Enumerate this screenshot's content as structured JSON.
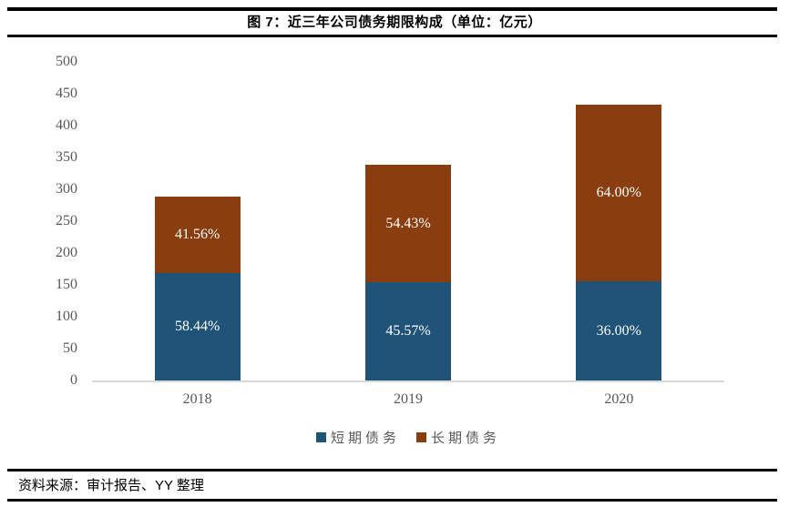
{
  "header": {
    "title": "图 7：近三年公司债务期限构成（单位：亿元）"
  },
  "footer": {
    "source": "资料来源：审计报告、YY 整理"
  },
  "chart_data": {
    "type": "bar",
    "stacked": true,
    "title": "图 7：近三年公司债务期限构成（单位：亿元）",
    "unit": "亿元",
    "categories": [
      "2018",
      "2019",
      "2020"
    ],
    "series": [
      {
        "name": "短期债务",
        "color": "#1F5378",
        "values": [
          169,
          154,
          156
        ],
        "labels": [
          "58.44%",
          "45.57%",
          "36.00%"
        ]
      },
      {
        "name": "长期债务",
        "color": "#8A3D0E",
        "values": [
          120,
          184,
          277
        ],
        "labels": [
          "41.56%",
          "54.43%",
          "64.00%"
        ]
      }
    ],
    "totals": [
      289,
      338,
      433
    ],
    "ylim": [
      0,
      500
    ],
    "yticks": [
      0,
      50,
      100,
      150,
      200,
      250,
      300,
      350,
      400,
      450,
      500
    ],
    "grid": false,
    "legend_position": "bottom",
    "bar_label_color": "#FFFFFF",
    "axis_text_color": "#595959",
    "baseline_color": "#D9D9D9"
  }
}
